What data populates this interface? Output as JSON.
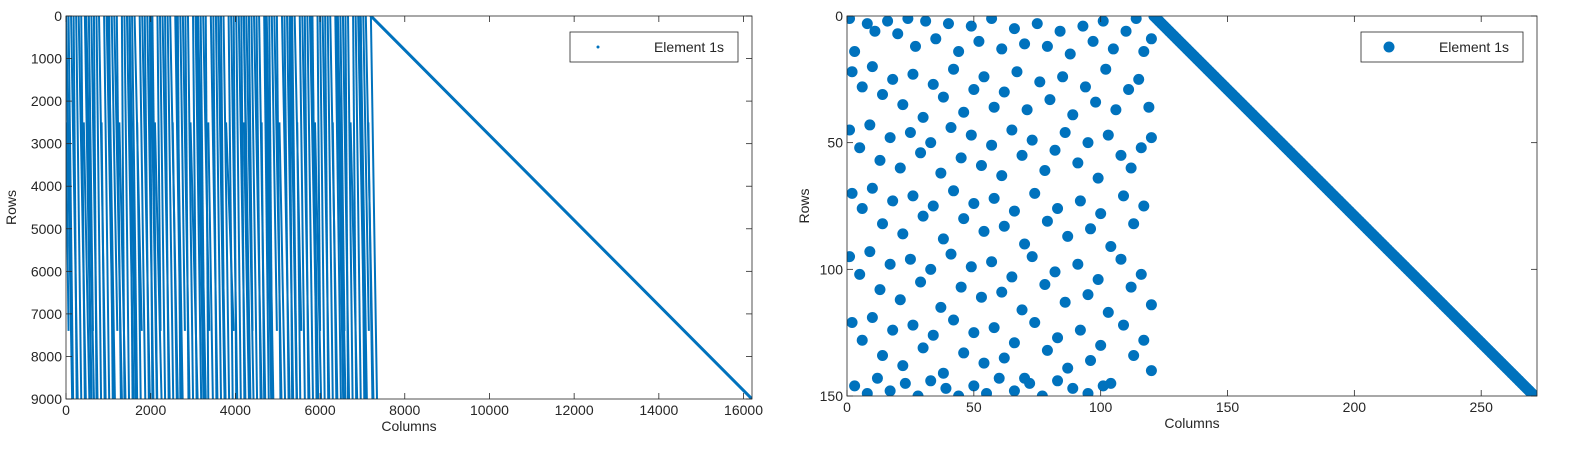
{
  "series_color": "#0072BD",
  "chart_data": [
    {
      "type": "scatter",
      "xlabel": "Columns",
      "ylabel": "Rows",
      "xlim": [
        0,
        16200
      ],
      "ylim": [
        0,
        9000
      ],
      "y_reversed": true,
      "xticks": [
        0,
        2000,
        4000,
        6000,
        8000,
        10000,
        12000,
        14000,
        16000
      ],
      "yticks": [
        0,
        1000,
        2000,
        3000,
        4000,
        5000,
        6000,
        7000,
        8000,
        9000
      ],
      "legend": {
        "label": "Element 1s",
        "position": "top-right",
        "marker": "point"
      },
      "grid": false,
      "series": [
        {
          "structure": "dense sparse band of nearly vertical runs in columns 0-7200, then a single diagonal from (7200,0) to (16200,9000)",
          "band_columns": [
            0,
            7200
          ],
          "runs": [
            [
              0,
              0,
              150,
              9000
            ],
            [
              450,
              0,
              600,
              9000
            ],
            [
              1000,
              0,
              1150,
              9000
            ],
            [
              1500,
              0,
              1650,
              9000
            ],
            [
              2000,
              0,
              2150,
              9000
            ],
            [
              2600,
              0,
              2750,
              9000
            ],
            [
              3100,
              0,
              3250,
              9000
            ],
            [
              3600,
              0,
              3750,
              9000
            ],
            [
              4200,
              0,
              4350,
              9000
            ],
            [
              4700,
              0,
              4850,
              9000
            ],
            [
              5300,
              0,
              5450,
              9000
            ],
            [
              5800,
              0,
              5950,
              9000
            ],
            [
              6400,
              0,
              6550,
              9000
            ],
            [
              6950,
              0,
              7100,
              9000
            ]
          ],
          "diagonal": [
            [
              7200,
              0
            ],
            [
              16200,
              9000
            ]
          ]
        }
      ]
    },
    {
      "type": "scatter",
      "xlabel": "Columns",
      "ylabel": "Rows",
      "xlim": [
        0,
        272
      ],
      "ylim": [
        0,
        150
      ],
      "y_reversed": true,
      "xticks": [
        0,
        50,
        100,
        150,
        200,
        250
      ],
      "yticks": [
        0,
        50,
        100,
        150
      ],
      "legend": {
        "label": "Element 1s",
        "position": "top-right",
        "marker": "circle"
      },
      "grid": false,
      "series": [
        {
          "structure": "scattered points in columns 0-120, then a single diagonal from (121,0) to (271,150)",
          "scatter_columns": [
            0,
            120
          ],
          "points": [
            [
              1,
              1
            ],
            [
              3,
              14
            ],
            [
              8,
              3
            ],
            [
              11,
              6
            ],
            [
              16,
              2
            ],
            [
              20,
              7
            ],
            [
              24,
              1
            ],
            [
              27,
              12
            ],
            [
              31,
              2
            ],
            [
              35,
              9
            ],
            [
              40,
              3
            ],
            [
              44,
              14
            ],
            [
              49,
              4
            ],
            [
              52,
              10
            ],
            [
              57,
              1
            ],
            [
              61,
              13
            ],
            [
              66,
              5
            ],
            [
              70,
              11
            ],
            [
              75,
              3
            ],
            [
              79,
              12
            ],
            [
              84,
              6
            ],
            [
              88,
              15
            ],
            [
              93,
              4
            ],
            [
              97,
              10
            ],
            [
              101,
              2
            ],
            [
              105,
              13
            ],
            [
              110,
              6
            ],
            [
              114,
              1
            ],
            [
              117,
              14
            ],
            [
              120,
              9
            ],
            [
              2,
              22
            ],
            [
              6,
              28
            ],
            [
              10,
              20
            ],
            [
              14,
              31
            ],
            [
              18,
              25
            ],
            [
              22,
              35
            ],
            [
              26,
              23
            ],
            [
              30,
              40
            ],
            [
              34,
              27
            ],
            [
              38,
              32
            ],
            [
              42,
              21
            ],
            [
              46,
              38
            ],
            [
              50,
              29
            ],
            [
              54,
              24
            ],
            [
              58,
              36
            ],
            [
              62,
              30
            ],
            [
              67,
              22
            ],
            [
              71,
              37
            ],
            [
              76,
              26
            ],
            [
              80,
              33
            ],
            [
              85,
              24
            ],
            [
              89,
              39
            ],
            [
              94,
              28
            ],
            [
              98,
              34
            ],
            [
              102,
              21
            ],
            [
              106,
              37
            ],
            [
              111,
              29
            ],
            [
              115,
              25
            ],
            [
              119,
              36
            ],
            [
              1,
              45
            ],
            [
              5,
              52
            ],
            [
              9,
              43
            ],
            [
              13,
              57
            ],
            [
              17,
              48
            ],
            [
              21,
              60
            ],
            [
              25,
              46
            ],
            [
              29,
              54
            ],
            [
              33,
              50
            ],
            [
              37,
              62
            ],
            [
              41,
              44
            ],
            [
              45,
              56
            ],
            [
              49,
              47
            ],
            [
              53,
              59
            ],
            [
              57,
              51
            ],
            [
              61,
              63
            ],
            [
              65,
              45
            ],
            [
              69,
              55
            ],
            [
              73,
              49
            ],
            [
              78,
              61
            ],
            [
              82,
              53
            ],
            [
              86,
              46
            ],
            [
              91,
              58
            ],
            [
              95,
              50
            ],
            [
              99,
              64
            ],
            [
              103,
              47
            ],
            [
              108,
              55
            ],
            [
              112,
              60
            ],
            [
              116,
              52
            ],
            [
              120,
              48
            ],
            [
              2,
              70
            ],
            [
              6,
              76
            ],
            [
              10,
              68
            ],
            [
              14,
              82
            ],
            [
              18,
              73
            ],
            [
              22,
              86
            ],
            [
              26,
              71
            ],
            [
              30,
              79
            ],
            [
              34,
              75
            ],
            [
              38,
              88
            ],
            [
              42,
              69
            ],
            [
              46,
              80
            ],
            [
              50,
              74
            ],
            [
              54,
              85
            ],
            [
              58,
              72
            ],
            [
              62,
              83
            ],
            [
              66,
              77
            ],
            [
              70,
              90
            ],
            [
              74,
              70
            ],
            [
              79,
              81
            ],
            [
              83,
              76
            ],
            [
              87,
              87
            ],
            [
              92,
              73
            ],
            [
              96,
              84
            ],
            [
              100,
              78
            ],
            [
              104,
              91
            ],
            [
              109,
              71
            ],
            [
              113,
              82
            ],
            [
              117,
              75
            ],
            [
              1,
              95
            ],
            [
              5,
              102
            ],
            [
              9,
              93
            ],
            [
              13,
              108
            ],
            [
              17,
              98
            ],
            [
              21,
              112
            ],
            [
              25,
              96
            ],
            [
              29,
              105
            ],
            [
              33,
              100
            ],
            [
              37,
              115
            ],
            [
              41,
              94
            ],
            [
              45,
              107
            ],
            [
              49,
              99
            ],
            [
              53,
              111
            ],
            [
              57,
              97
            ],
            [
              61,
              109
            ],
            [
              65,
              103
            ],
            [
              69,
              116
            ],
            [
              73,
              95
            ],
            [
              78,
              106
            ],
            [
              82,
              101
            ],
            [
              86,
              113
            ],
            [
              91,
              98
            ],
            [
              95,
              110
            ],
            [
              99,
              104
            ],
            [
              103,
              117
            ],
            [
              108,
              96
            ],
            [
              112,
              107
            ],
            [
              116,
              102
            ],
            [
              120,
              114
            ],
            [
              2,
              121
            ],
            [
              6,
              128
            ],
            [
              10,
              119
            ],
            [
              14,
              134
            ],
            [
              18,
              124
            ],
            [
              22,
              138
            ],
            [
              26,
              122
            ],
            [
              30,
              131
            ],
            [
              34,
              126
            ],
            [
              38,
              141
            ],
            [
              42,
              120
            ],
            [
              46,
              133
            ],
            [
              50,
              125
            ],
            [
              54,
              137
            ],
            [
              58,
              123
            ],
            [
              62,
              135
            ],
            [
              66,
              129
            ],
            [
              70,
              143
            ],
            [
              74,
              121
            ],
            [
              79,
              132
            ],
            [
              83,
              127
            ],
            [
              87,
              139
            ],
            [
              92,
              124
            ],
            [
              96,
              136
            ],
            [
              100,
              130
            ],
            [
              104,
              145
            ],
            [
              109,
              122
            ],
            [
              113,
              134
            ],
            [
              117,
              128
            ],
            [
              120,
              140
            ],
            [
              3,
              146
            ],
            [
              8,
              149
            ],
            [
              12,
              143
            ],
            [
              17,
              148
            ],
            [
              23,
              145
            ],
            [
              28,
              150
            ],
            [
              33,
              144
            ],
            [
              39,
              147
            ],
            [
              44,
              150
            ],
            [
              50,
              146
            ],
            [
              55,
              149
            ],
            [
              60,
              143
            ],
            [
              66,
              148
            ],
            [
              72,
              145
            ],
            [
              77,
              150
            ],
            [
              83,
              144
            ],
            [
              89,
              147
            ],
            [
              95,
              149
            ],
            [
              101,
              146
            ]
          ],
          "diagonal": [
            [
              121,
              0
            ],
            [
              271,
              150
            ]
          ]
        }
      ]
    }
  ]
}
